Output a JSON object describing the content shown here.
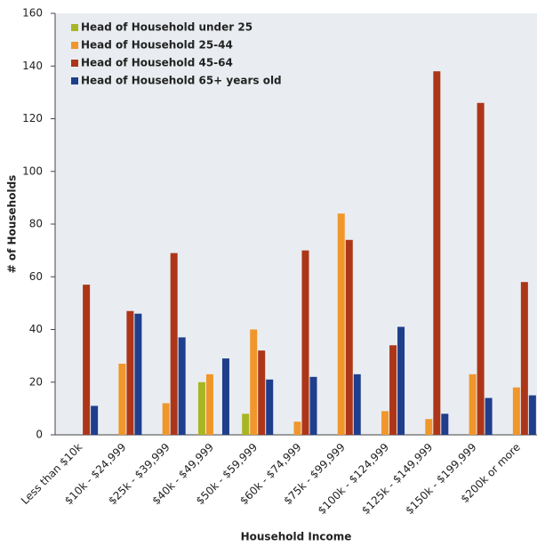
{
  "chart_data": {
    "type": "bar",
    "x_label": "Household Income",
    "y_label": "# of Households",
    "categories": [
      "Less than $10k",
      "$10k - $24,999",
      "$25k - $39,999",
      "$40k - $49,999",
      "$50k - $59,999",
      "$60k - $74,999",
      "$75k - $99,999",
      "$100k - $124,999",
      "$125k - $149,999",
      "$150k - $199,999",
      "$200k or more"
    ],
    "series": [
      {
        "name": "Head of Household under 25",
        "color": "#a9b624",
        "values": [
          0,
          0,
          0,
          20,
          8,
          0,
          0,
          0,
          0,
          0,
          0
        ]
      },
      {
        "name": "Head of Household 25-44",
        "color": "#f0962b",
        "values": [
          0,
          27,
          12,
          23,
          40,
          5,
          84,
          9,
          6,
          23,
          18
        ]
      },
      {
        "name": "Head of Household 45-64",
        "color": "#ad3619",
        "values": [
          57,
          47,
          69,
          0,
          32,
          70,
          74,
          34,
          138,
          126,
          58
        ]
      },
      {
        "name": "Head of Household 65+ years old",
        "color": "#1f3e8c",
        "values": [
          11,
          46,
          37,
          29,
          21,
          22,
          23,
          41,
          8,
          14,
          15
        ]
      }
    ],
    "ylim": [
      0,
      160
    ],
    "yticks": [
      0,
      20,
      40,
      60,
      80,
      100,
      120,
      140,
      160
    ],
    "grid": false,
    "legend": "top-left"
  }
}
